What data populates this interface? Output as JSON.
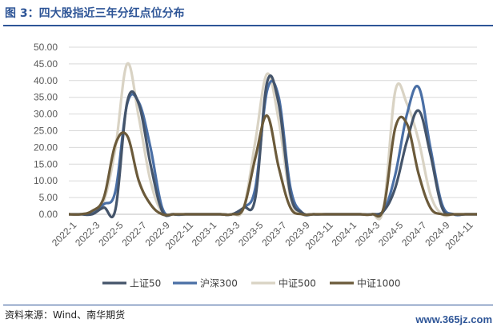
{
  "figure": {
    "title": "图 3：四大股指近三年分红点位分布",
    "source": "资料来源：Wind、南华期货",
    "watermark": "www.365jz.com"
  },
  "chart_data": {
    "type": "line",
    "title": "图 3：四大股指近三年分红点位分布",
    "xlabel": "",
    "ylabel": "",
    "ylim": [
      0,
      50
    ],
    "yticks": [
      "0.00",
      "5.00",
      "10.00",
      "15.00",
      "20.00",
      "25.00",
      "30.00",
      "35.00",
      "40.00",
      "45.00",
      "50.00"
    ],
    "categories": [
      "2022-1",
      "2022-2",
      "2022-3",
      "2022-4",
      "2022-5",
      "2022-6",
      "2022-7",
      "2022-8",
      "2022-9",
      "2022-10",
      "2022-11",
      "2022-12",
      "2023-1",
      "2023-2",
      "2023-3",
      "2023-4",
      "2023-5",
      "2023-6",
      "2023-7",
      "2023-8",
      "2023-9",
      "2023-10",
      "2023-11",
      "2023-12",
      "2024-1",
      "2024-2",
      "2024-3",
      "2024-4",
      "2024-5",
      "2024-6",
      "2024-7",
      "2024-8",
      "2024-9",
      "2024-10",
      "2024-11",
      "2024-12"
    ],
    "tick_labels": [
      "2022-1",
      "2022-3",
      "2022-5",
      "2022-7",
      "2022-9",
      "2022-11",
      "2023-1",
      "2023-3",
      "2023-5",
      "2023-7",
      "2023-9",
      "2023-11",
      "2024-1",
      "2024-3",
      "2024-5",
      "2024-7",
      "2024-9",
      "2024-11"
    ],
    "grid": true,
    "legend_position": "bottom",
    "series": [
      {
        "name": "上证50",
        "color": "#44546a",
        "values": [
          0,
          0,
          0,
          2,
          1.5,
          33.5,
          33,
          15,
          1,
          0,
          0,
          0,
          0,
          0,
          0,
          2,
          5,
          39.5,
          33,
          6,
          0.5,
          0,
          0,
          0,
          0,
          0,
          0,
          1,
          8,
          22,
          31,
          18,
          2,
          0,
          0,
          0
        ]
      },
      {
        "name": "沪深300",
        "color": "#4a6fa5",
        "values": [
          0,
          0,
          0.5,
          3,
          7,
          33,
          33.5,
          20,
          2,
          0,
          0,
          0,
          0,
          0,
          0,
          2,
          8,
          37,
          35,
          8,
          0.5,
          0,
          0,
          0,
          0,
          0,
          0,
          1,
          12,
          30,
          38,
          20,
          3,
          0,
          0,
          0
        ]
      },
      {
        "name": "中证500",
        "color": "#d9d3c4",
        "values": [
          0,
          0,
          0.5,
          4,
          20,
          45,
          29,
          10,
          0.5,
          0,
          0,
          0,
          0,
          0,
          0,
          2,
          22,
          42,
          28,
          5,
          0,
          0,
          0,
          0,
          0,
          0,
          0,
          2,
          37,
          33,
          22,
          6,
          0,
          0,
          0,
          0
        ]
      },
      {
        "name": "中证1000",
        "color": "#6b5a3a",
        "values": [
          0,
          0,
          1,
          5,
          21,
          23.5,
          10,
          3,
          0,
          0,
          0,
          0,
          0,
          0,
          0,
          2,
          17,
          29.5,
          14,
          2,
          0,
          0,
          0,
          0,
          0,
          0,
          0,
          2,
          26,
          27,
          12,
          2,
          0,
          0,
          0,
          0
        ]
      }
    ]
  }
}
